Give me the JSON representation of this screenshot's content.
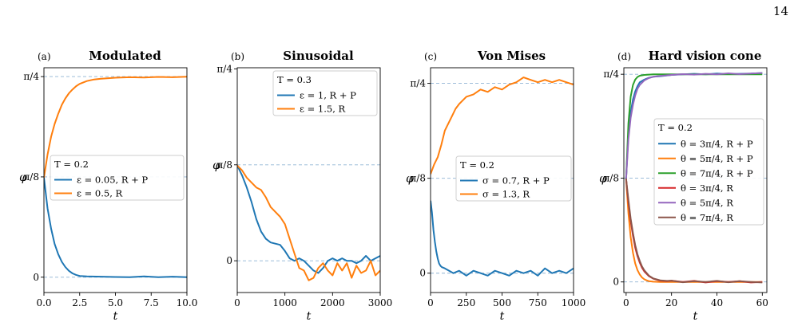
{
  "page_number": "14",
  "chart_data": [
    {
      "id": "a",
      "type": "line",
      "panel_label": "(a)",
      "title": "Modulated",
      "xlabel": "t",
      "ylabel": "φ",
      "xlim": [
        0,
        10
      ],
      "ylim": [
        -0.06,
        0.82
      ],
      "xticks": [
        0,
        2.5,
        5,
        7.5,
        10
      ],
      "xtick_labels": [
        "0.0",
        "2.5",
        "5.0",
        "7.5",
        "10.0"
      ],
      "yticks": [
        0,
        0.3927,
        0.7854
      ],
      "ytick_labels": [
        "0",
        "π/8",
        "π/4"
      ],
      "hlines": [
        0,
        0.3927,
        0.7854
      ],
      "legend_title": "T = 0.2",
      "legend_position": "center-right",
      "series": [
        {
          "name": "ε = 0.05,  R + P",
          "color": "#1f77b4",
          "x": [
            0,
            0.25,
            0.5,
            0.75,
            1,
            1.25,
            1.5,
            1.75,
            2,
            2.25,
            2.5,
            3,
            4,
            5,
            6,
            7,
            8,
            9,
            10
          ],
          "y": [
            0.39,
            0.27,
            0.19,
            0.13,
            0.09,
            0.06,
            0.04,
            0.025,
            0.015,
            0.009,
            0.005,
            0.003,
            0.002,
            0.001,
            0.0,
            0.003,
            0.0,
            0.002,
            0.0
          ]
        },
        {
          "name": "ε = 0.5,  R",
          "color": "#ff7f0e",
          "x": [
            0,
            0.25,
            0.5,
            0.75,
            1,
            1.25,
            1.5,
            1.75,
            2,
            2.25,
            2.5,
            3,
            3.5,
            4,
            5,
            6,
            7,
            8,
            9,
            10
          ],
          "y": [
            0.39,
            0.48,
            0.55,
            0.6,
            0.64,
            0.675,
            0.7,
            0.72,
            0.735,
            0.748,
            0.757,
            0.768,
            0.774,
            0.777,
            0.781,
            0.783,
            0.782,
            0.784,
            0.783,
            0.785
          ]
        }
      ]
    },
    {
      "id": "b",
      "type": "line",
      "panel_label": "(b)",
      "title": "Sinusoidal",
      "xlabel": "t",
      "ylabel": "φ",
      "xlim": [
        0,
        3000
      ],
      "ylim": [
        -0.13,
        0.79
      ],
      "xticks": [
        0,
        1000,
        2000,
        3000
      ],
      "xtick_labels": [
        "0",
        "1000",
        "2000",
        "3000"
      ],
      "yticks": [
        0,
        0.3927,
        0.7854
      ],
      "ytick_labels": [
        "0",
        "π/8",
        "π/4"
      ],
      "hlines": [
        0,
        0.3927
      ],
      "legend_title": "T = 0.3",
      "legend_position": "top-right",
      "series": [
        {
          "name": "ε = 1,  R + P",
          "color": "#1f77b4",
          "x": [
            0,
            100,
            200,
            300,
            400,
            500,
            600,
            700,
            800,
            900,
            1000,
            1100,
            1200,
            1300,
            1400,
            1500,
            1600,
            1700,
            1800,
            1900,
            2000,
            2100,
            2200,
            2300,
            2400,
            2500,
            2600,
            2700,
            2800,
            2900,
            3000
          ],
          "y": [
            0.39,
            0.35,
            0.3,
            0.24,
            0.17,
            0.12,
            0.09,
            0.075,
            0.07,
            0.065,
            0.04,
            0.01,
            0.0,
            0.01,
            0.0,
            -0.02,
            -0.04,
            -0.05,
            -0.03,
            0.0,
            0.01,
            0.0,
            0.01,
            0.0,
            0.0,
            -0.01,
            0.0,
            0.02,
            0.0,
            0.01,
            0.02
          ]
        },
        {
          "name": "ε = 1.5,  R",
          "color": "#ff7f0e",
          "x": [
            0,
            100,
            200,
            300,
            400,
            500,
            600,
            700,
            800,
            900,
            1000,
            1100,
            1200,
            1300,
            1400,
            1500,
            1600,
            1700,
            1800,
            1900,
            2000,
            2100,
            2200,
            2300,
            2400,
            2500,
            2600,
            2700,
            2800,
            2900,
            3000
          ],
          "y": [
            0.39,
            0.37,
            0.34,
            0.32,
            0.3,
            0.29,
            0.26,
            0.22,
            0.2,
            0.18,
            0.15,
            0.09,
            0.03,
            -0.03,
            -0.04,
            -0.08,
            -0.07,
            -0.03,
            -0.01,
            -0.04,
            -0.06,
            -0.01,
            -0.04,
            -0.01,
            -0.07,
            -0.02,
            -0.05,
            -0.04,
            0.0,
            -0.06,
            -0.04
          ]
        }
      ]
    },
    {
      "id": "c",
      "type": "line",
      "panel_label": "(c)",
      "title": "Von Mises",
      "xlabel": "t",
      "ylabel": "φ",
      "xlim": [
        0,
        1000
      ],
      "ylim": [
        -0.08,
        0.85
      ],
      "xticks": [
        0,
        250,
        500,
        750,
        1000
      ],
      "xtick_labels": [
        "0",
        "250",
        "500",
        "750",
        "1000"
      ],
      "yticks": [
        0,
        0.3927,
        0.7854
      ],
      "ytick_labels": [
        "0",
        "π/8",
        "π/4"
      ],
      "hlines": [
        0,
        0.3927,
        0.7854
      ],
      "legend_title": "T = 0.2",
      "legend_position": "center-right",
      "series": [
        {
          "name": "σ = 0.7,  R + P",
          "color": "#1f77b4",
          "x": [
            0,
            10,
            20,
            30,
            40,
            50,
            60,
            70,
            80,
            100,
            130,
            160,
            200,
            250,
            300,
            350,
            400,
            450,
            500,
            550,
            600,
            650,
            700,
            750,
            800,
            850,
            900,
            950,
            1000
          ],
          "y": [
            0.3,
            0.25,
            0.18,
            0.13,
            0.09,
            0.06,
            0.04,
            0.03,
            0.025,
            0.02,
            0.01,
            0.0,
            0.01,
            -0.01,
            0.01,
            0.0,
            -0.01,
            0.01,
            0.0,
            -0.01,
            0.01,
            0.0,
            0.01,
            -0.01,
            0.02,
            0.0,
            0.01,
            0.0,
            0.02
          ]
        },
        {
          "name": "σ = 1.3,  R",
          "color": "#ff7f0e",
          "x": [
            0,
            25,
            50,
            75,
            100,
            125,
            150,
            175,
            200,
            250,
            300,
            350,
            400,
            450,
            500,
            550,
            600,
            650,
            700,
            750,
            800,
            850,
            900,
            950,
            1000
          ],
          "y": [
            0.41,
            0.45,
            0.48,
            0.53,
            0.59,
            0.62,
            0.65,
            0.68,
            0.7,
            0.73,
            0.74,
            0.76,
            0.75,
            0.77,
            0.76,
            0.78,
            0.79,
            0.81,
            0.8,
            0.79,
            0.8,
            0.79,
            0.8,
            0.79,
            0.78
          ]
        }
      ]
    },
    {
      "id": "d",
      "type": "line",
      "panel_label": "(d)",
      "title": "Hard vision cone",
      "xlabel": "t",
      "ylabel": "φ",
      "xlim": [
        -1,
        62
      ],
      "ylim": [
        -0.04,
        0.81
      ],
      "xticks": [
        0,
        20,
        40,
        60
      ],
      "xtick_labels": [
        "0",
        "20",
        "40",
        "60"
      ],
      "yticks": [
        0,
        0.3927,
        0.7854
      ],
      "ytick_labels": [
        "0",
        "π/8",
        "π/4"
      ],
      "hlines": [
        0,
        0.3927,
        0.7854
      ],
      "legend_title": "T = 0.2",
      "legend_position": "center-right",
      "series": [
        {
          "name": "θ = 3π/4,  R + P",
          "color": "#1f77b4",
          "x": [
            0,
            1,
            2,
            3,
            4,
            5,
            6,
            8,
            10,
            12,
            15,
            20,
            25,
            30,
            35,
            40,
            45,
            50,
            55,
            60
          ],
          "y": [
            0.39,
            0.56,
            0.64,
            0.69,
            0.72,
            0.74,
            0.755,
            0.765,
            0.772,
            0.776,
            0.778,
            0.783,
            0.785,
            0.787,
            0.785,
            0.788,
            0.786,
            0.787,
            0.788,
            0.79
          ]
        },
        {
          "name": "θ = 5π/4,  R + P",
          "color": "#ff7f0e",
          "x": [
            0,
            1,
            2,
            3,
            4,
            5,
            6,
            7,
            8,
            9,
            10,
            12,
            15,
            20,
            30,
            40,
            50,
            60
          ],
          "y": [
            0.39,
            0.26,
            0.17,
            0.11,
            0.07,
            0.045,
            0.028,
            0.017,
            0.01,
            0.006,
            0.003,
            0.001,
            0.0,
            0.0,
            0.0,
            0.0,
            0.0,
            0.0
          ]
        },
        {
          "name": "θ = 7π/4,  R + P",
          "color": "#2ca02c",
          "x": [
            0,
            1,
            2,
            3,
            4,
            5,
            6,
            8,
            10,
            12,
            15,
            20,
            30,
            40,
            50,
            60
          ],
          "y": [
            0.39,
            0.6,
            0.7,
            0.745,
            0.765,
            0.775,
            0.78,
            0.783,
            0.784,
            0.785,
            0.785,
            0.785,
            0.785,
            0.785,
            0.785,
            0.785
          ]
        },
        {
          "name": "θ = 3π/4,  R",
          "color": "#d62728",
          "x": [
            0,
            1,
            2,
            3,
            4,
            5,
            6,
            7,
            8,
            10,
            12,
            15,
            18,
            20,
            25,
            30,
            35,
            40,
            45,
            50,
            55,
            60
          ],
          "y": [
            0.39,
            0.3,
            0.23,
            0.175,
            0.13,
            0.098,
            0.073,
            0.054,
            0.04,
            0.022,
            0.012,
            0.005,
            0.003,
            0.005,
            0.0,
            0.004,
            -0.002,
            0.003,
            0.0,
            0.003,
            -0.002,
            0.0
          ]
        },
        {
          "name": "θ = 5π/4,  R",
          "color": "#9467bd",
          "x": [
            0,
            1,
            2,
            3,
            4,
            5,
            6,
            8,
            10,
            12,
            15,
            20,
            25,
            30,
            35,
            40,
            45,
            50,
            55,
            60
          ],
          "y": [
            0.39,
            0.54,
            0.62,
            0.67,
            0.705,
            0.73,
            0.745,
            0.762,
            0.771,
            0.776,
            0.779,
            0.783,
            0.786,
            0.784,
            0.787,
            0.785,
            0.789,
            0.786,
            0.788,
            0.79
          ]
        },
        {
          "name": "θ = 7π/4,  R",
          "color": "#8c564b",
          "x": [
            0,
            1,
            2,
            3,
            4,
            5,
            6,
            7,
            8,
            10,
            12,
            15,
            18,
            20,
            25,
            30,
            35,
            40,
            45,
            50,
            55,
            60
          ],
          "y": [
            0.39,
            0.31,
            0.24,
            0.185,
            0.14,
            0.105,
            0.079,
            0.059,
            0.044,
            0.024,
            0.013,
            0.006,
            0.004,
            0.005,
            -0.001,
            0.003,
            0.0,
            0.004,
            -0.001,
            0.003,
            0.0,
            -0.002
          ]
        }
      ]
    }
  ]
}
